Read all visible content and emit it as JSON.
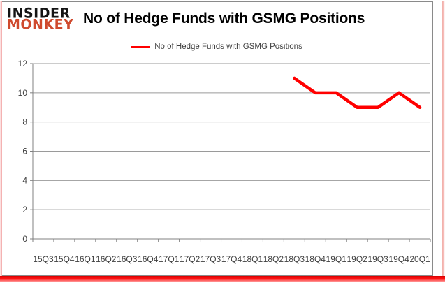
{
  "branding": {
    "logo_line1": "INSIDER",
    "logo_line2": "MONKEY",
    "logo_red": "#cf4a2e"
  },
  "header": {
    "title": "No of Hedge Funds with GSMG Positions"
  },
  "legend": {
    "label": "No of Hedge Funds with GSMG Positions",
    "marker": "red-line"
  },
  "chart_data": {
    "type": "line",
    "title": "No of Hedge Funds with GSMG Positions",
    "categories": [
      "15Q3",
      "15Q4",
      "16Q1",
      "16Q2",
      "16Q3",
      "16Q4",
      "17Q1",
      "17Q2",
      "17Q3",
      "17Q4",
      "18Q1",
      "18Q2",
      "18Q3",
      "18Q4",
      "19Q1",
      "19Q2",
      "19Q3",
      "19Q4",
      "20Q1"
    ],
    "series": [
      {
        "name": "No of Hedge Funds with GSMG Positions",
        "color": "#ff0000",
        "values": [
          null,
          null,
          null,
          null,
          null,
          null,
          null,
          null,
          null,
          null,
          null,
          null,
          11,
          10,
          10,
          9,
          9,
          10,
          9
        ]
      }
    ],
    "ylim": [
      0,
      12
    ],
    "yticks": [
      0,
      2,
      4,
      6,
      8,
      10,
      12
    ],
    "xlabel": "",
    "ylabel": "",
    "grid": "horizontal",
    "legend_position": "top-center"
  },
  "colors": {
    "series_line": "#ff0000",
    "gridline": "#9a9a9a",
    "axis": "#808080",
    "tick_label": "#3f3f3f",
    "frame_border": "#8a8a8a",
    "glow_red": "#ff1414"
  }
}
